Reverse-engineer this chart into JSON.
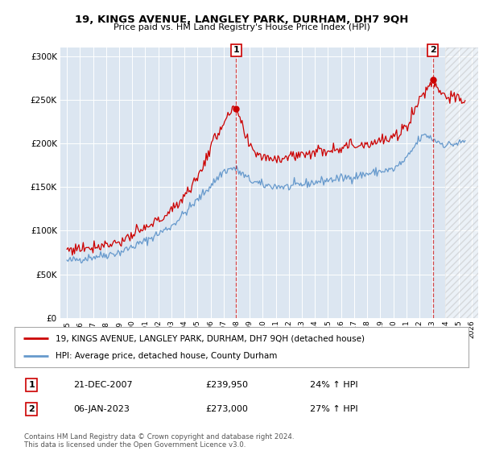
{
  "title": "19, KINGS AVENUE, LANGLEY PARK, DURHAM, DH7 9QH",
  "subtitle": "Price paid vs. HM Land Registry's House Price Index (HPI)",
  "legend_line1": "19, KINGS AVENUE, LANGLEY PARK, DURHAM, DH7 9QH (detached house)",
  "legend_line2": "HPI: Average price, detached house, County Durham",
  "annotation1_label": "1",
  "annotation1_date": "21-DEC-2007",
  "annotation1_price": "£239,950",
  "annotation1_hpi": "24% ↑ HPI",
  "annotation2_label": "2",
  "annotation2_date": "06-JAN-2023",
  "annotation2_price": "£273,000",
  "annotation2_hpi": "27% ↑ HPI",
  "footer": "Contains HM Land Registry data © Crown copyright and database right 2024.\nThis data is licensed under the Open Government Licence v3.0.",
  "hpi_color": "#6699cc",
  "price_color": "#cc0000",
  "background_plot": "#dce6f1",
  "ylim": [
    0,
    310000
  ],
  "yticks": [
    0,
    50000,
    100000,
    150000,
    200000,
    250000,
    300000
  ],
  "sale1_x": 2007.97,
  "sale1_y": 239950,
  "sale2_x": 2023.03,
  "sale2_y": 273000,
  "xmin": 1995,
  "xmax": 2026,
  "hatch_start": 2024.0
}
